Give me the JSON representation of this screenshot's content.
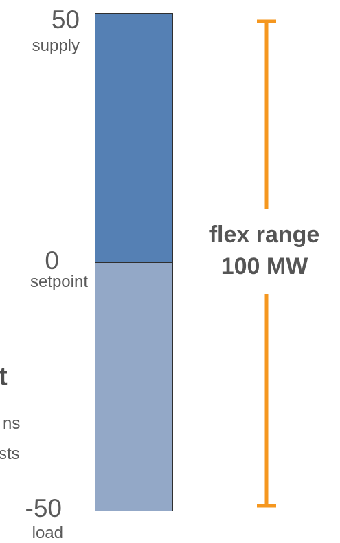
{
  "scale": {
    "top": {
      "value": "50",
      "label": "supply"
    },
    "middle": {
      "value": "0",
      "label": "setpoint"
    },
    "bottom": {
      "value": "-50",
      "label": "load"
    }
  },
  "bar": {
    "supply_color": "#5580b4",
    "load_color": "#93a8c7",
    "supply_range": [
      0,
      50
    ],
    "load_range": [
      -50,
      0
    ]
  },
  "flex_range": {
    "line1": "flex range",
    "line2": "100 MW",
    "color": "#f5971f"
  },
  "left_fragments": {
    "bold": "t",
    "line1": "ns",
    "line2": "sts"
  }
}
